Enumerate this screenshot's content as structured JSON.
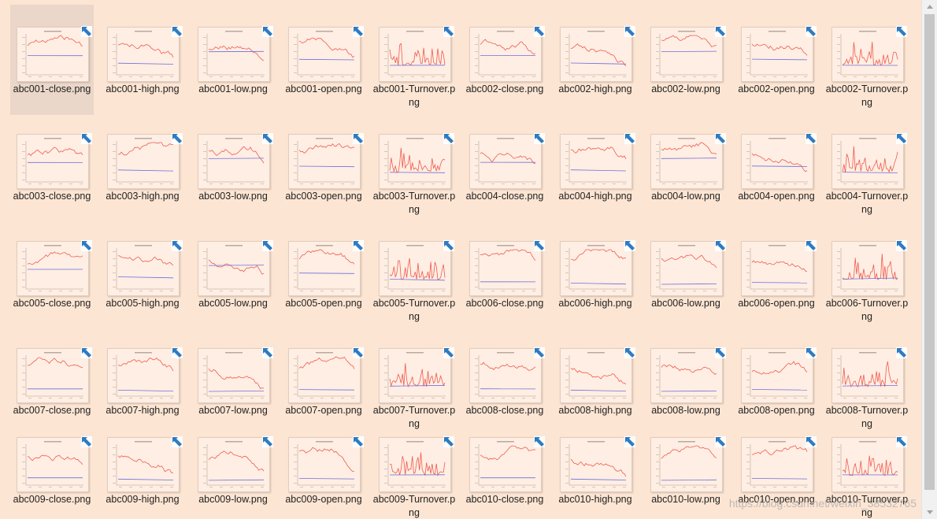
{
  "files": [
    {
      "label": "abc001-close.png",
      "selected": true
    },
    {
      "label": "abc001-high.png"
    },
    {
      "label": "abc001-low.png"
    },
    {
      "label": "abc001-open.png"
    },
    {
      "label": "abc001-Turnover.png"
    },
    {
      "label": "abc002-close.png"
    },
    {
      "label": "abc002-high.png"
    },
    {
      "label": "abc002-low.png"
    },
    {
      "label": "abc002-open.png"
    },
    {
      "label": "abc002-Turnover.png"
    },
    {
      "label": "abc003-close.png"
    },
    {
      "label": "abc003-high.png"
    },
    {
      "label": "abc003-low.png"
    },
    {
      "label": "abc003-open.png"
    },
    {
      "label": "abc003-Turnover.png"
    },
    {
      "label": "abc004-close.png"
    },
    {
      "label": "abc004-high.png"
    },
    {
      "label": "abc004-low.png"
    },
    {
      "label": "abc004-open.png"
    },
    {
      "label": "abc004-Turnover.png"
    },
    {
      "label": "abc005-close.png"
    },
    {
      "label": "abc005-high.png"
    },
    {
      "label": "abc005-low.png"
    },
    {
      "label": "abc005-open.png"
    },
    {
      "label": "abc005-Turnover.png"
    },
    {
      "label": "abc006-close.png"
    },
    {
      "label": "abc006-high.png"
    },
    {
      "label": "abc006-low.png"
    },
    {
      "label": "abc006-open.png"
    },
    {
      "label": "abc006-Turnover.png"
    },
    {
      "label": "abc007-close.png"
    },
    {
      "label": "abc007-high.png"
    },
    {
      "label": "abc007-low.png"
    },
    {
      "label": "abc007-open.png"
    },
    {
      "label": "abc007-Turnover.png"
    },
    {
      "label": "abc008-close.png"
    },
    {
      "label": "abc008-high.png"
    },
    {
      "label": "abc008-low.png"
    },
    {
      "label": "abc008-open.png"
    },
    {
      "label": "abc008-Turnover.png"
    },
    {
      "label": "abc009-close.png"
    },
    {
      "label": "abc009-high.png"
    },
    {
      "label": "abc009-low.png"
    },
    {
      "label": "abc009-open.png"
    },
    {
      "label": "abc009-Turnover.png"
    },
    {
      "label": "abc010-close.png"
    },
    {
      "label": "abc010-high.png"
    },
    {
      "label": "abc010-low.png"
    },
    {
      "label": "abc010-open.png"
    },
    {
      "label": "abc010-Turnover.png"
    }
  ],
  "badge_icon": "shortcut-overlay-icon",
  "watermark": "https://blog.csdn.net/weixin_38532765",
  "colors": {
    "background": "#fde5d3",
    "selection": "#ead7c9",
    "series_red": "#ef5b50",
    "series_blue": "#6e6ed8",
    "badge_blue": "#2f7bc0"
  }
}
